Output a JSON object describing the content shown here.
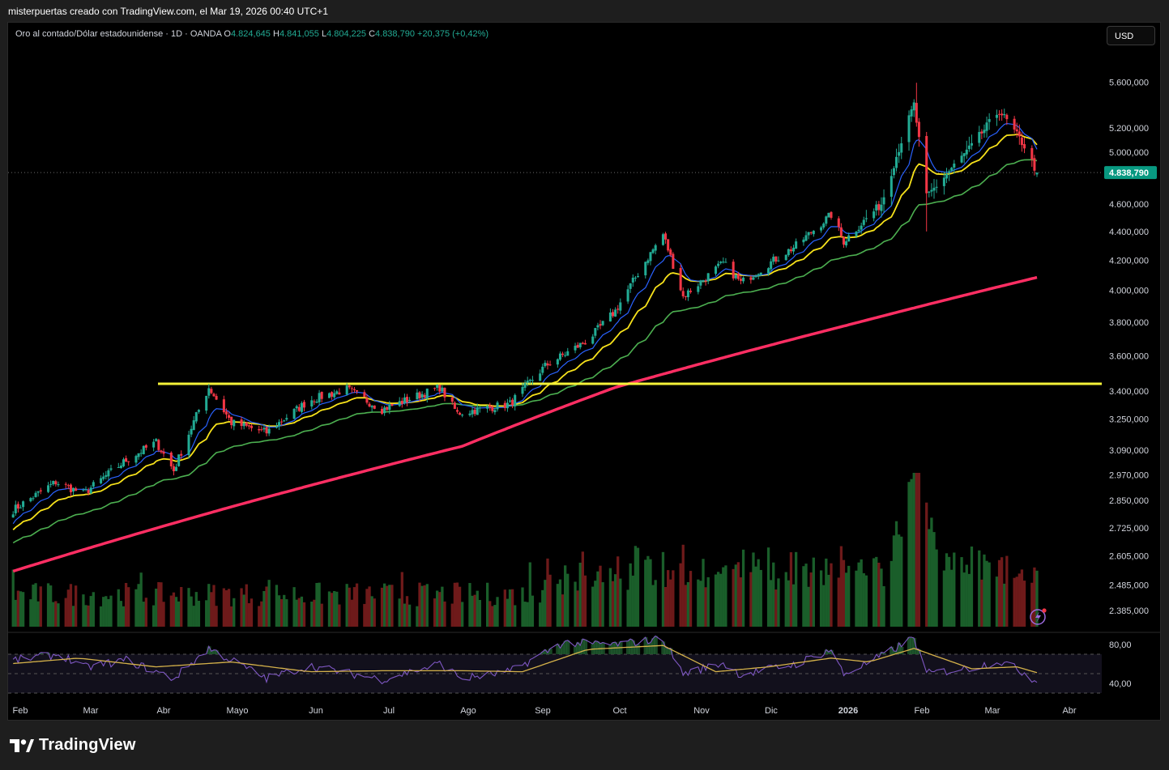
{
  "caption": "misterpuertas creado con TradingView.com, el Mar 19, 2026 00:40 UTC+1",
  "legend": {
    "symbol": "Oro al contado/Dólar estadounidense · 1D · OANDA",
    "open_key": "O",
    "open": "4.824,645",
    "high_key": "H",
    "high": "4.841,055",
    "low_key": "L",
    "low": "4.804,225",
    "close_key": "C",
    "close": "4.838,790",
    "change": "+20,375 (+0,42%)"
  },
  "currency_button": "USD",
  "brand": "TradingView",
  "colors": {
    "up": "#22ab94",
    "down": "#f23645",
    "ema_fast": "#2962ff",
    "ema_yellow": "#f7e21b",
    "ema_green": "#4caf50",
    "ema_200": "#ff2e63",
    "support": "#f5f239",
    "rsi": "#7e57c2",
    "rsi_ma": "#d4b14a",
    "price_tag": "#089981"
  },
  "chart_data": [
    {
      "type": "candlestick",
      "title": "Oro al contado/Dólar estadounidense · 1D · OANDA",
      "yscale": "log",
      "yticks": [
        "5.600,000",
        "5.200,000",
        "5.000,000",
        "4.600,000",
        "4.400,000",
        "4.200,000",
        "4.000,000",
        "3.800,000",
        "3.600,000",
        "3.400,000",
        "3.250,000",
        "3.090,000",
        "2.970,000",
        "2.850,000",
        "2.725,000",
        "2.605,000",
        "2.485,000",
        "2.385,000"
      ],
      "ytick_values": [
        5600,
        5200,
        5000,
        4600,
        4400,
        4200,
        4000,
        3800,
        3600,
        3400,
        3250,
        3090,
        2970,
        2850,
        2725,
        2605,
        2485,
        2385
      ],
      "xticks": [
        "Feb",
        "Mar",
        "Abr",
        "Mayo",
        "Jun",
        "Jul",
        "Ago",
        "Sep",
        "Oct",
        "Nov",
        "Dic",
        "2026",
        "Feb",
        "Mar",
        "Abr"
      ],
      "x_start": "2025-02-01",
      "x_end": "2026-03-18",
      "last_price_label": "4.838,790",
      "last_price": 4838.79,
      "anchors": [
        {
          "date": "2025-02-01",
          "close": 2790
        },
        {
          "date": "2025-02-20",
          "close": 2935
        },
        {
          "date": "2025-03-03",
          "close": 2880
        },
        {
          "date": "2025-03-20",
          "close": 3040
        },
        {
          "date": "2025-04-01",
          "close": 3130
        },
        {
          "date": "2025-04-08",
          "close": 2990
        },
        {
          "date": "2025-04-22",
          "close": 3420
        },
        {
          "date": "2025-05-01",
          "close": 3230
        },
        {
          "date": "2025-05-15",
          "close": 3180
        },
        {
          "date": "2025-06-01",
          "close": 3350
        },
        {
          "date": "2025-06-16",
          "close": 3410
        },
        {
          "date": "2025-06-30",
          "close": 3300
        },
        {
          "date": "2025-07-23",
          "close": 3420
        },
        {
          "date": "2025-07-30",
          "close": 3280
        },
        {
          "date": "2025-08-20",
          "close": 3330
        },
        {
          "date": "2025-09-03",
          "close": 3540
        },
        {
          "date": "2025-09-20",
          "close": 3690
        },
        {
          "date": "2025-10-01",
          "close": 3870
        },
        {
          "date": "2025-10-20",
          "close": 4380
        },
        {
          "date": "2025-10-28",
          "close": 3960
        },
        {
          "date": "2025-11-13",
          "close": 4180
        },
        {
          "date": "2025-11-20",
          "close": 4050
        },
        {
          "date": "2025-12-12",
          "close": 4300
        },
        {
          "date": "2025-12-26",
          "close": 4520
        },
        {
          "date": "2025-12-31",
          "close": 4330
        },
        {
          "date": "2026-01-15",
          "close": 4600
        },
        {
          "date": "2026-01-28",
          "close": 5400
        },
        {
          "date": "2026-02-02",
          "close": 4650
        },
        {
          "date": "2026-02-20",
          "close": 5050
        },
        {
          "date": "2026-03-03",
          "close": 5350
        },
        {
          "date": "2026-03-13",
          "close": 5050
        },
        {
          "date": "2026-03-18",
          "close": 4838.79
        }
      ],
      "support_level": 3440,
      "moving_averages": [
        {
          "color": "#2962ff",
          "period": 10
        },
        {
          "color": "#f7e21b",
          "period": 20
        },
        {
          "color": "#4caf50",
          "period": 50
        },
        {
          "color": "#ff2e63",
          "period": 200
        }
      ],
      "ema200_path": [
        {
          "date": "2025-02-01",
          "value": 2535
        },
        {
          "date": "2025-05-01",
          "value": 2820
        },
        {
          "date": "2025-08-01",
          "value": 3110
        },
        {
          "date": "2025-10-01",
          "value": 3420
        },
        {
          "date": "2026-01-01",
          "value": 3780
        },
        {
          "date": "2026-03-18",
          "value": 4085
        }
      ],
      "ma_start": {
        "ma10": 2735,
        "ma20": 2710,
        "ma50": 2655
      },
      "volume": {
        "shown": true,
        "peak_date": "2026-01-29"
      }
    },
    {
      "type": "line",
      "name": "RSI",
      "yticks": [
        "80,00",
        "40,00"
      ],
      "ytick_values": [
        80,
        40
      ],
      "bands": [
        70,
        50,
        30
      ],
      "ylim": [
        20,
        90
      ],
      "series": [
        {
          "name": "RSI",
          "anchors": [
            {
              "date": "2025-02-01",
              "value": 63
            },
            {
              "date": "2025-02-22",
              "value": 70
            },
            {
              "date": "2025-03-03",
              "value": 56
            },
            {
              "date": "2025-03-20",
              "value": 64
            },
            {
              "date": "2025-04-08",
              "value": 45
            },
            {
              "date": "2025-04-22",
              "value": 76
            },
            {
              "date": "2025-05-15",
              "value": 45
            },
            {
              "date": "2025-06-01",
              "value": 58
            },
            {
              "date": "2025-06-30",
              "value": 44
            },
            {
              "date": "2025-07-23",
              "value": 60
            },
            {
              "date": "2025-08-01",
              "value": 45
            },
            {
              "date": "2025-08-20",
              "value": 52
            },
            {
              "date": "2025-09-10",
              "value": 82
            },
            {
              "date": "2025-10-01",
              "value": 80
            },
            {
              "date": "2025-10-20",
              "value": 86
            },
            {
              "date": "2025-10-28",
              "value": 50
            },
            {
              "date": "2025-11-13",
              "value": 61
            },
            {
              "date": "2025-11-20",
              "value": 49
            },
            {
              "date": "2025-12-12",
              "value": 60
            },
            {
              "date": "2025-12-26",
              "value": 75
            },
            {
              "date": "2025-12-31",
              "value": 49
            },
            {
              "date": "2026-01-15",
              "value": 68
            },
            {
              "date": "2026-01-28",
              "value": 87
            },
            {
              "date": "2026-02-02",
              "value": 50
            },
            {
              "date": "2026-02-20",
              "value": 56
            },
            {
              "date": "2026-03-03",
              "value": 63
            },
            {
              "date": "2026-03-13",
              "value": 51
            },
            {
              "date": "2026-03-18",
              "value": 41
            }
          ]
        },
        {
          "name": "RSI MA",
          "anchors": [
            {
              "date": "2025-02-01",
              "value": 60
            },
            {
              "date": "2025-03-01",
              "value": 66
            },
            {
              "date": "2025-04-01",
              "value": 57
            },
            {
              "date": "2025-05-01",
              "value": 62
            },
            {
              "date": "2025-06-01",
              "value": 52
            },
            {
              "date": "2025-07-01",
              "value": 53
            },
            {
              "date": "2025-08-01",
              "value": 53
            },
            {
              "date": "2025-08-25",
              "value": 52
            },
            {
              "date": "2025-09-20",
              "value": 75
            },
            {
              "date": "2025-10-20",
              "value": 79
            },
            {
              "date": "2025-11-10",
              "value": 52
            },
            {
              "date": "2025-12-01",
              "value": 57
            },
            {
              "date": "2025-12-26",
              "value": 66
            },
            {
              "date": "2026-01-10",
              "value": 62
            },
            {
              "date": "2026-01-28",
              "value": 76
            },
            {
              "date": "2026-02-20",
              "value": 55
            },
            {
              "date": "2026-03-10",
              "value": 57
            },
            {
              "date": "2026-03-18",
              "value": 51
            }
          ]
        }
      ]
    }
  ]
}
